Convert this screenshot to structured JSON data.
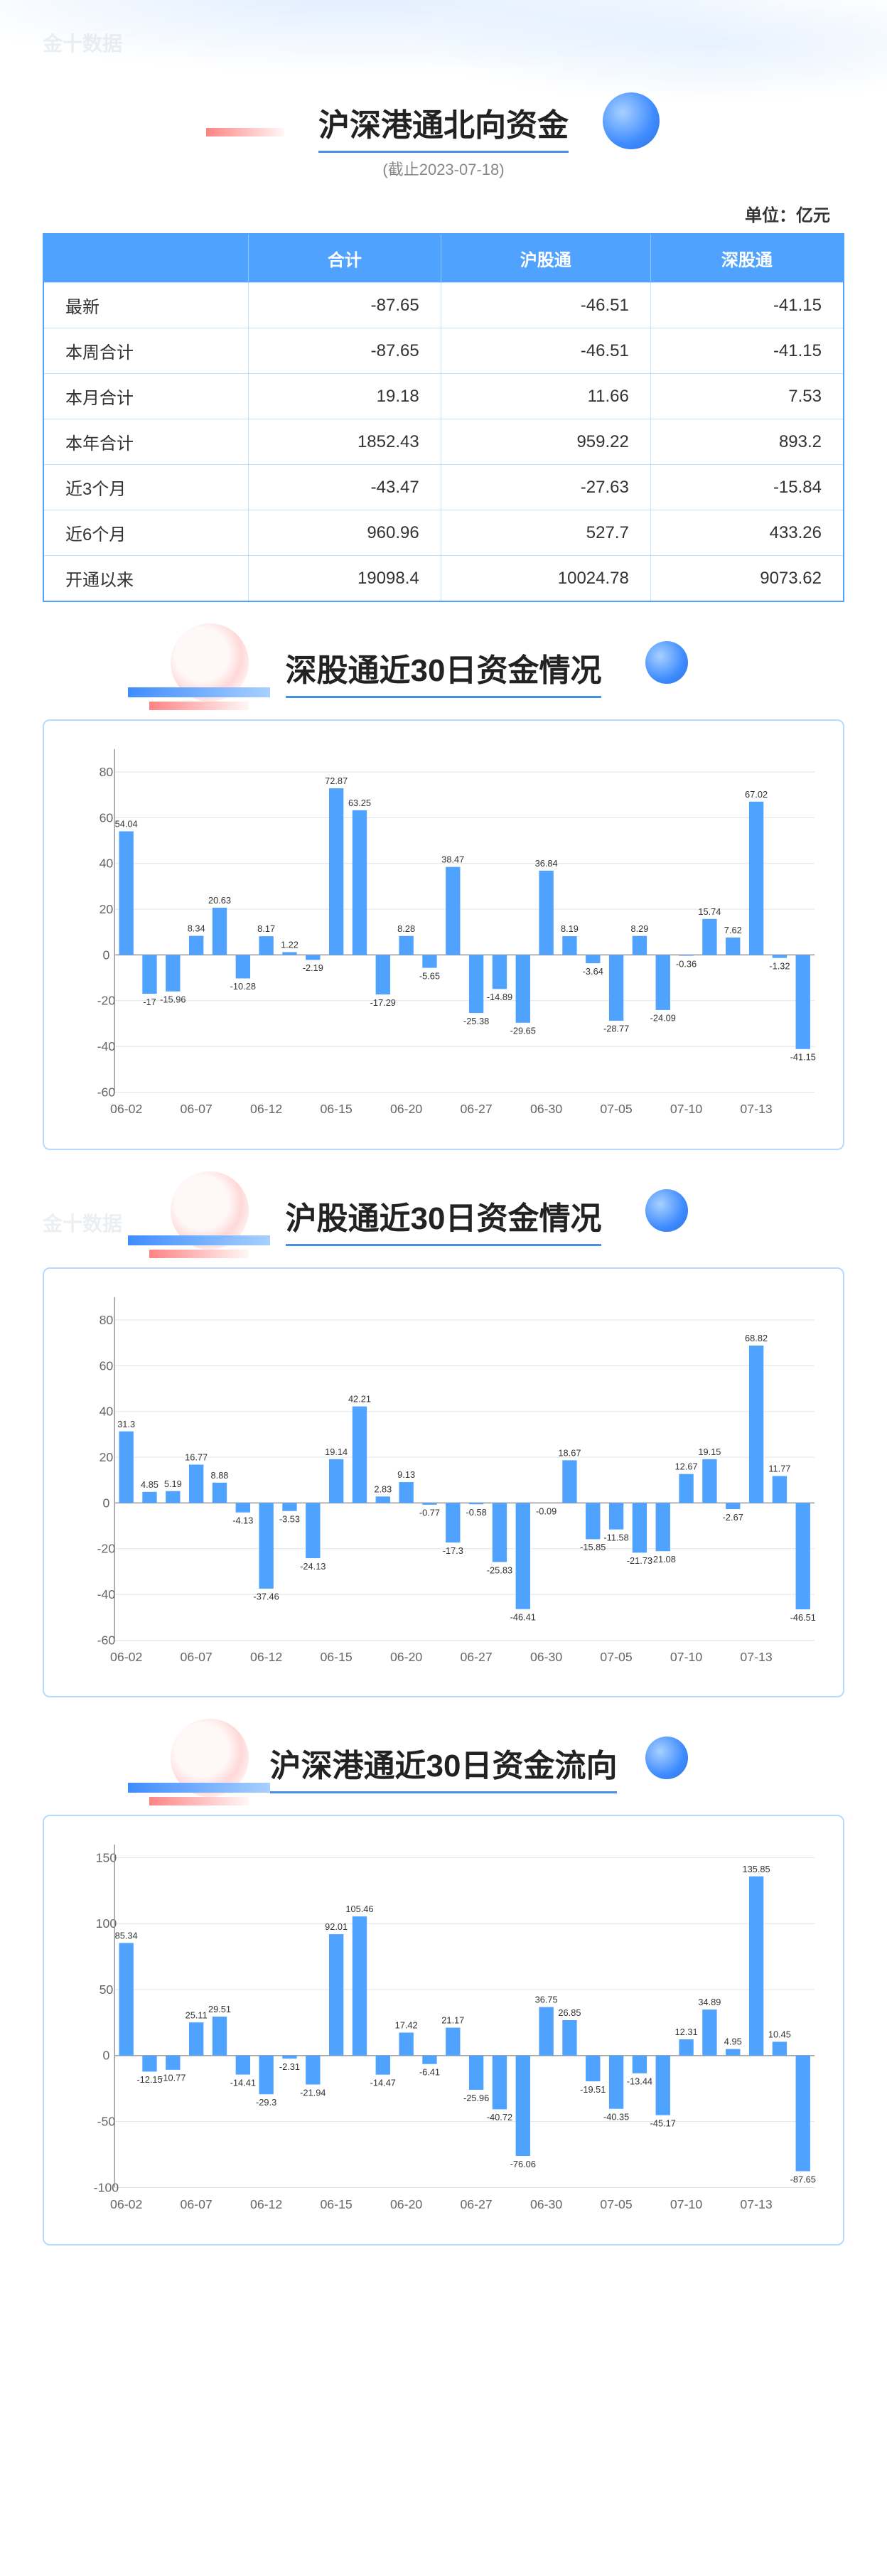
{
  "watermark_text": "金十数据",
  "header": {
    "title": "沪深港通北向资金",
    "subtitle": "(截止2023-07-18)",
    "unit": "单位：亿元"
  },
  "table": {
    "columns": [
      "",
      "合计",
      "沪股通",
      "深股通"
    ],
    "rows": [
      [
        "最新",
        "-87.65",
        "-46.51",
        "-41.15"
      ],
      [
        "本周合计",
        "-87.65",
        "-46.51",
        "-41.15"
      ],
      [
        "本月合计",
        "19.18",
        "11.66",
        "7.53"
      ],
      [
        "本年合计",
        "1852.43",
        "959.22",
        "893.2"
      ],
      [
        "近3个月",
        "-43.47",
        "-27.63",
        "-15.84"
      ],
      [
        "近6个月",
        "960.96",
        "527.7",
        "433.26"
      ],
      [
        "开通以来",
        "19098.4",
        "10024.78",
        "9073.62"
      ]
    ]
  },
  "charts": [
    {
      "title": "深股通近30日资金情况",
      "x_labels": [
        "06-02",
        "06-07",
        "06-12",
        "06-15",
        "06-20",
        "06-27",
        "06-30",
        "07-05",
        "07-10",
        "07-13"
      ],
      "x_label_step": 3,
      "y_ticks": [
        -60,
        -40,
        -20,
        0,
        20,
        40,
        60,
        80
      ],
      "ylim": [
        -60,
        90
      ],
      "bar_color": "#4fa3ff",
      "grid_color": "#dde5ee",
      "data": [
        54.04,
        -17,
        -15.96,
        8.34,
        20.63,
        -10.28,
        8.17,
        1.22,
        -2.19,
        72.87,
        63.25,
        -17.29,
        8.28,
        -5.65,
        38.47,
        -25.38,
        -14.89,
        -29.65,
        36.84,
        8.19,
        -3.64,
        -28.77,
        8.29,
        -24.09,
        -0.36,
        15.74,
        7.62,
        67.02,
        -1.32,
        -41.15
      ]
    },
    {
      "title": "沪股通近30日资金情况",
      "x_labels": [
        "06-02",
        "06-07",
        "06-12",
        "06-15",
        "06-20",
        "06-27",
        "06-30",
        "07-05",
        "07-10",
        "07-13"
      ],
      "x_label_step": 3,
      "y_ticks": [
        -60,
        -40,
        -20,
        0,
        20,
        40,
        60,
        80
      ],
      "ylim": [
        -60,
        90
      ],
      "bar_color": "#4fa3ff",
      "grid_color": "#dde5ee",
      "data": [
        31.3,
        4.85,
        5.19,
        16.77,
        8.88,
        -4.13,
        -37.46,
        -3.53,
        -24.13,
        19.14,
        42.21,
        2.83,
        9.13,
        -0.77,
        -17.3,
        -0.58,
        -25.83,
        -46.41,
        -0.09,
        18.67,
        -15.85,
        -11.58,
        -21.73,
        -21.08,
        12.67,
        19.15,
        -2.67,
        68.82,
        11.77,
        -46.51
      ]
    },
    {
      "title": "沪深港通近30日资金流向",
      "x_labels": [
        "06-02",
        "06-07",
        "06-12",
        "06-15",
        "06-20",
        "06-27",
        "06-30",
        "07-05",
        "07-10",
        "07-13"
      ],
      "x_label_step": 3,
      "y_ticks": [
        -100,
        -50,
        0,
        50,
        100,
        150
      ],
      "ylim": [
        -100,
        160
      ],
      "bar_color": "#4fa3ff",
      "grid_color": "#dde5ee",
      "data": [
        85.34,
        -12.15,
        -10.77,
        25.11,
        29.51,
        -14.41,
        -29.3,
        -2.31,
        -21.94,
        92.01,
        105.46,
        -14.47,
        17.42,
        -6.41,
        21.17,
        -25.96,
        -40.72,
        -76.06,
        36.75,
        26.85,
        -19.51,
        -40.35,
        -13.44,
        -45.17,
        12.31,
        34.89,
        4.95,
        135.85,
        10.45,
        -87.65
      ]
    }
  ],
  "styling": {
    "page_bg": "#ffffff",
    "primary_blue": "#4fa3ff",
    "border_blue": "#b8d8ff",
    "text_color": "#333333",
    "title_fontsize": 44,
    "table_fontsize": 24,
    "label_fontsize": 13,
    "axis_fontsize": 18
  }
}
